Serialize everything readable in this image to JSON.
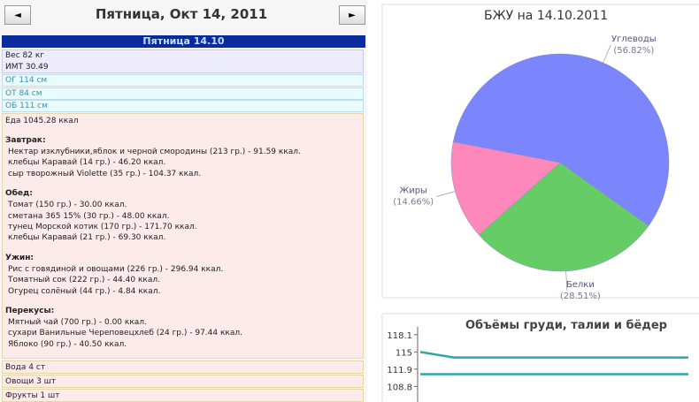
{
  "panel": {
    "nav": {
      "prev": "◄",
      "title": "Пятница, Окт 14, 2011",
      "next": "►"
    },
    "day_bar": "Пятница 14.10",
    "weight": [
      "Вес 82 кг",
      "ИМТ 30.49"
    ],
    "measures": [
      "ОГ 114 см",
      "ОТ 84 см",
      "ОБ 111 см"
    ],
    "food": {
      "total": "Еда 1045.28 ккал",
      "meals": [
        {
          "name": "Завтрак:",
          "items": [
            "Нектар изклубники,яблок и черной смородины (213 гр.) - 91.59 ккал.",
            "клебцы Каравай (14 гр.) - 46.20 ккал.",
            "сыр творожный Violette (35 гр.) - 104.37 ккал."
          ]
        },
        {
          "name": "Обед:",
          "items": [
            "Томат (150 гр.) - 30.00 ккал.",
            "сметана 365 15% (30 гр.) - 48.00 ккал.",
            "тунец Морской котик (170 гр.) - 171.70 ккал.",
            "клебцы Каравай (21 гр.) - 69.30 ккал."
          ]
        },
        {
          "name": "Ужин:",
          "items": [
            "Рис с говядиной и овощами (226 гр.) - 296.94 ккал.",
            "Томатный сок (222 гр.) - 44.40 ккал.",
            "Огурец солёный (44 гр.) - 4.84 ккал."
          ]
        },
        {
          "name": "Перекусы:",
          "items": [
            "Мятный чай (700 гр.) - 0.00 ккал.",
            "сухари Ванильные Череповецхлеб (24 гр.) - 97.44 ккал.",
            "Яблоко (90 гр.) - 40.50 ккал."
          ]
        }
      ]
    },
    "extras": [
      "Вода 4 ст",
      "Овощи 3 шт",
      "Фрукты 1 шт"
    ]
  },
  "chart_data": [
    {
      "type": "pie",
      "title": "БЖУ на 14.10.2011",
      "categories": [
        "Углеводы",
        "Белки",
        "Жиры"
      ],
      "values": [
        56.82,
        28.51,
        14.66
      ],
      "value_labels": [
        "(56.82%)",
        "(28.51%)",
        "(14.66%)"
      ],
      "colors": [
        "#7b86fd",
        "#66cc66",
        "#ff88bb"
      ]
    },
    {
      "type": "line",
      "title": "Объёмы груди, талии и бёдер",
      "categories": [
        null,
        null,
        null,
        null,
        null,
        null,
        null,
        null,
        null
      ],
      "series": [
        {
          "color": "#2aa8a8",
          "values": [
            115,
            114,
            114,
            114,
            114,
            114,
            114,
            114,
            114
          ]
        },
        {
          "color": "#2aa8a8",
          "values": [
            111,
            111,
            111,
            111,
            111,
            111,
            111,
            111,
            111
          ]
        }
      ],
      "ylim": [
        106,
        119.5
      ],
      "yticks": [
        108.8,
        111.9,
        115,
        118.1
      ]
    }
  ]
}
